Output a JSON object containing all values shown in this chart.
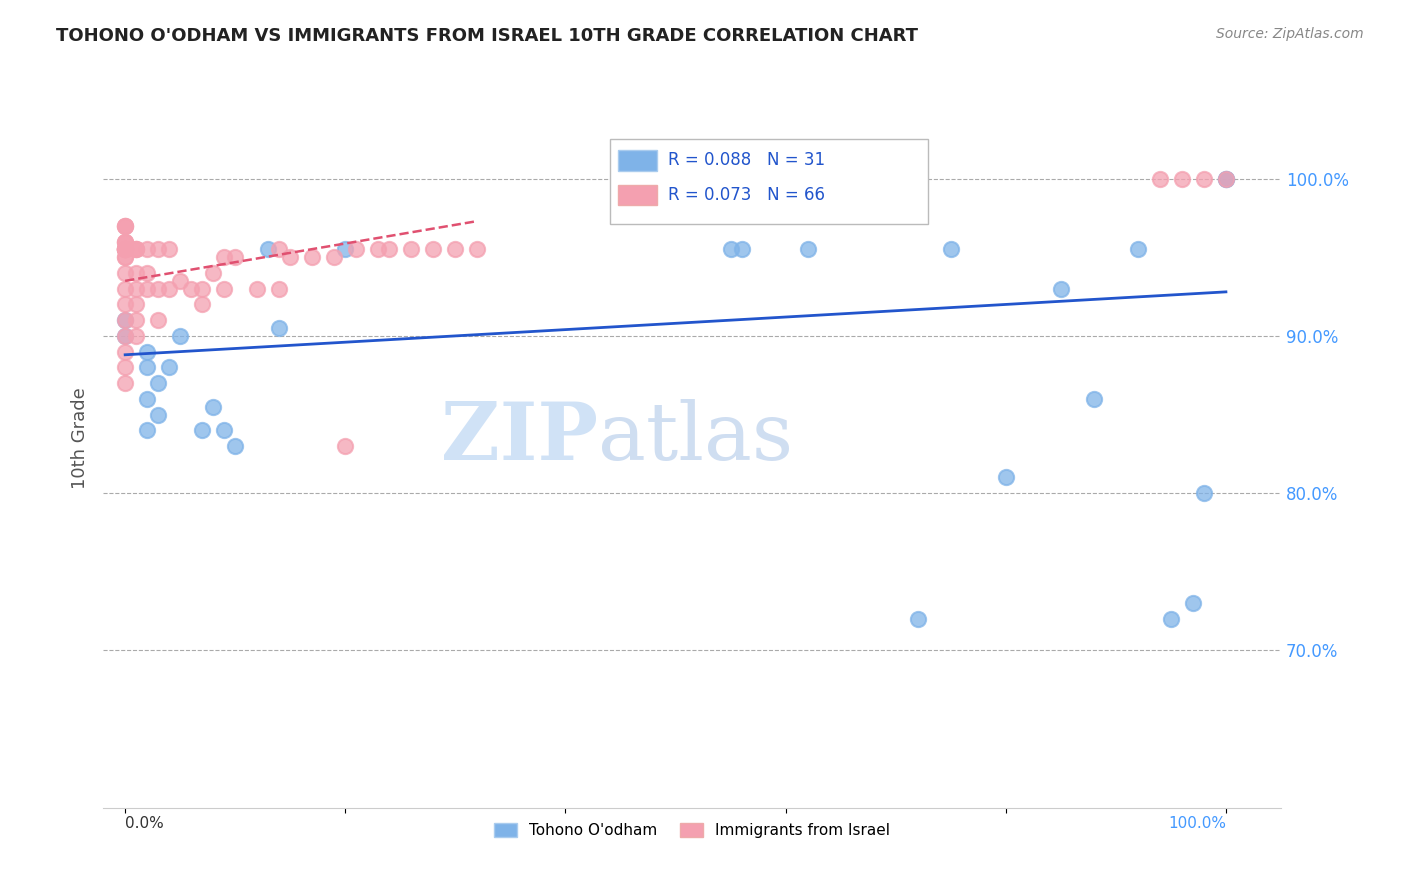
{
  "title": "TOHONO O'ODHAM VS IMMIGRANTS FROM ISRAEL 10TH GRADE CORRELATION CHART",
  "source": "Source: ZipAtlas.com",
  "xlabel_bottom_left": "0.0%",
  "xlabel_bottom_right": "100.0%",
  "ylabel": "10th Grade",
  "ytick_labels": [
    "70.0%",
    "80.0%",
    "90.0%",
    "100.0%"
  ],
  "ytick_positions": [
    0.7,
    0.8,
    0.9,
    1.0
  ],
  "legend_labels": [
    "Tohono O'odham",
    "Immigrants from Israel"
  ],
  "blue_R": 0.088,
  "blue_N": 31,
  "pink_R": 0.073,
  "pink_N": 66,
  "blue_color": "#7fb3e8",
  "pink_color": "#f4a0b0",
  "blue_line_color": "#2255cc",
  "pink_line_color": "#e05070",
  "watermark_zip": "ZIP",
  "watermark_atlas": "atlas",
  "blue_scatter_x": [
    0.0,
    0.0,
    0.02,
    0.02,
    0.02,
    0.02,
    0.03,
    0.03,
    0.04,
    0.05,
    0.07,
    0.08,
    0.09,
    0.1,
    0.13,
    0.14,
    0.2,
    0.55,
    0.56,
    0.62,
    0.72,
    0.75,
    0.8,
    0.85,
    0.88,
    0.92,
    0.95,
    0.97,
    1.0,
    1.0,
    0.98
  ],
  "blue_scatter_y": [
    0.9,
    0.91,
    0.88,
    0.89,
    0.86,
    0.84,
    0.87,
    0.85,
    0.88,
    0.9,
    0.84,
    0.855,
    0.84,
    0.83,
    0.955,
    0.905,
    0.955,
    0.955,
    0.955,
    0.955,
    0.72,
    0.955,
    0.81,
    0.93,
    0.86,
    0.955,
    0.72,
    0.73,
    1.0,
    1.0,
    0.8
  ],
  "pink_scatter_x": [
    0.0,
    0.0,
    0.0,
    0.0,
    0.0,
    0.0,
    0.0,
    0.0,
    0.0,
    0.0,
    0.0,
    0.0,
    0.0,
    0.0,
    0.0,
    0.0,
    0.0,
    0.0,
    0.0,
    0.0,
    0.0,
    0.0,
    0.0,
    0.0,
    0.01,
    0.01,
    0.01,
    0.01,
    0.01,
    0.01,
    0.01,
    0.01,
    0.02,
    0.02,
    0.02,
    0.03,
    0.03,
    0.03,
    0.04,
    0.04,
    0.05,
    0.06,
    0.07,
    0.07,
    0.08,
    0.09,
    0.09,
    0.1,
    0.12,
    0.14,
    0.14,
    0.15,
    0.17,
    0.19,
    0.2,
    0.21,
    0.23,
    0.24,
    0.26,
    0.28,
    0.3,
    0.32,
    1.0,
    0.98,
    0.96,
    0.94
  ],
  "pink_scatter_y": [
    0.955,
    0.955,
    0.955,
    0.955,
    0.955,
    0.955,
    0.955,
    0.955,
    0.96,
    0.96,
    0.96,
    0.97,
    0.97,
    0.97,
    0.95,
    0.95,
    0.94,
    0.93,
    0.92,
    0.91,
    0.9,
    0.89,
    0.88,
    0.87,
    0.955,
    0.955,
    0.955,
    0.94,
    0.93,
    0.92,
    0.91,
    0.9,
    0.955,
    0.94,
    0.93,
    0.955,
    0.93,
    0.91,
    0.955,
    0.93,
    0.935,
    0.93,
    0.93,
    0.92,
    0.94,
    0.95,
    0.93,
    0.95,
    0.93,
    0.955,
    0.93,
    0.95,
    0.95,
    0.95,
    0.83,
    0.955,
    0.955,
    0.955,
    0.955,
    0.955,
    0.955,
    0.955,
    1.0,
    1.0,
    1.0,
    1.0
  ],
  "blue_line_x": [
    0.0,
    1.0
  ],
  "blue_line_y": [
    0.888,
    0.928
  ],
  "pink_line_x": [
    0.0,
    0.32
  ],
  "pink_line_y": [
    0.935,
    0.973
  ],
  "xlim": [
    -0.02,
    1.05
  ],
  "ylim": [
    0.6,
    1.07
  ]
}
